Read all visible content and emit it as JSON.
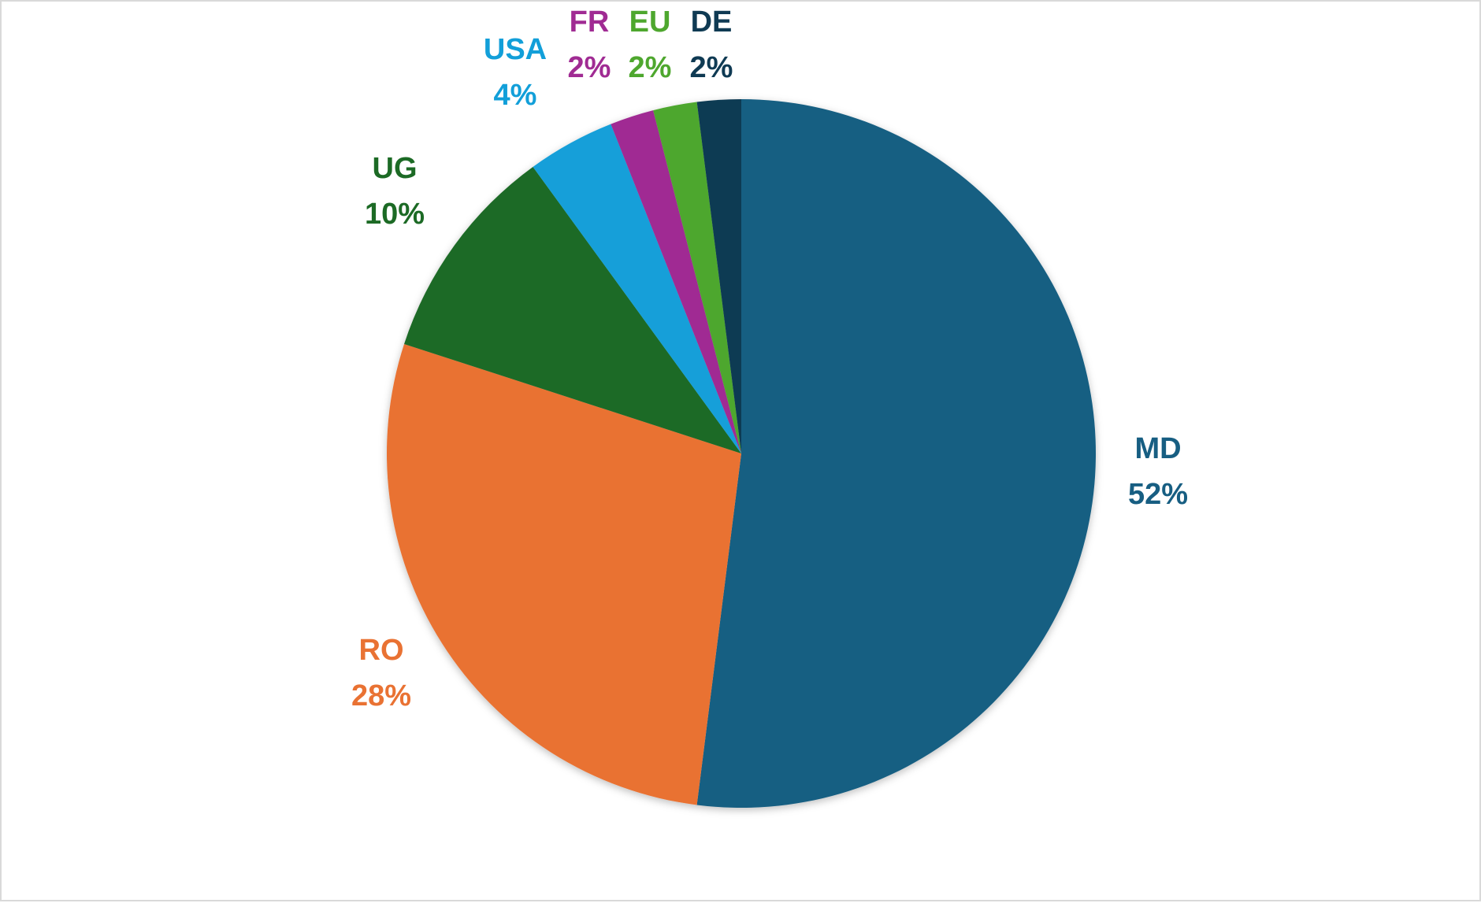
{
  "chart_data": {
    "type": "pie",
    "start_angle_deg": 0,
    "direction": "clockwise",
    "title": "",
    "legend": "none",
    "slices": [
      {
        "category": "MD",
        "value": 52,
        "label": "52%",
        "color": "#175E82"
      },
      {
        "category": "RO",
        "value": 28,
        "label": "28%",
        "color": "#E97233"
      },
      {
        "category": "UG",
        "value": 10,
        "label": "10%",
        "color": "#1C6A25"
      },
      {
        "category": "USA",
        "value": 4,
        "label": "4%",
        "color": "#129FD9"
      },
      {
        "category": "FR",
        "value": 2,
        "label": "2%",
        "color": "#A02B93"
      },
      {
        "category": "EU",
        "value": 2,
        "label": "2%",
        "color": "#4EA72E"
      },
      {
        "category": "DE",
        "value": 2,
        "label": "2%",
        "color": "#0F3A53"
      }
    ]
  }
}
